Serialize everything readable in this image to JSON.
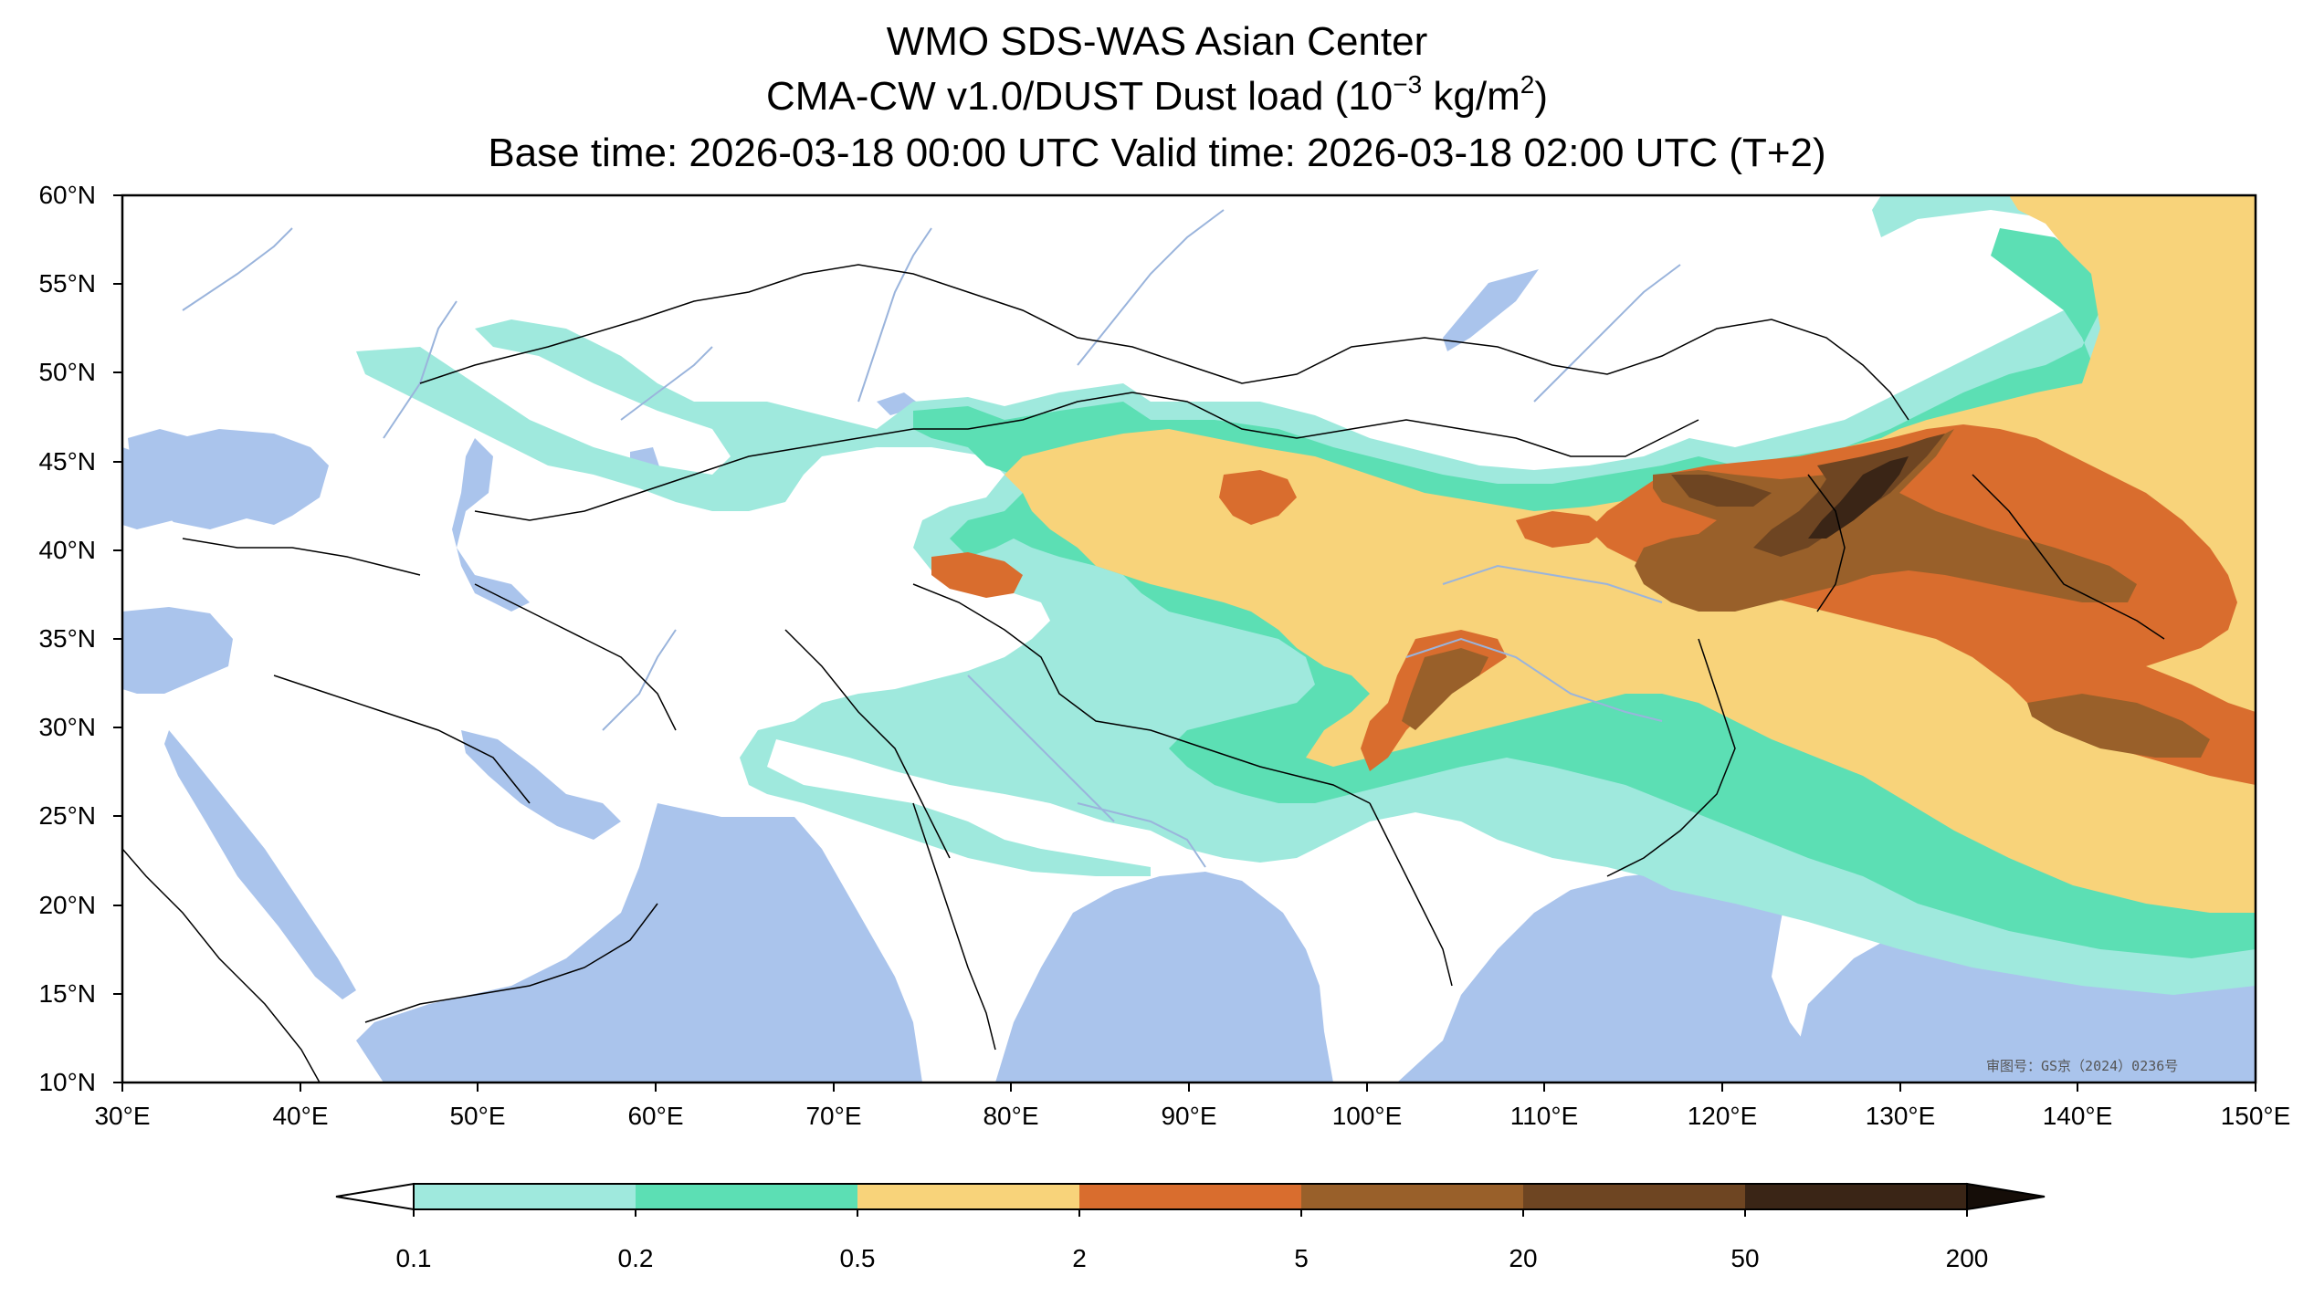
{
  "title": {
    "line1": "WMO SDS-WAS Asian Center",
    "line2_prefix": "CMA-CW v1.0/DUST Dust load (10",
    "line2_exp": "−3",
    "line2_mid": " kg/m",
    "line2_sup": "2",
    "line2_suffix": ")",
    "line3": "Base time: 2026-03-18 00:00 UTC Valid time: 2026-03-18 02:00 UTC (T+2)"
  },
  "map": {
    "projection": "Plate Carree",
    "lon_range": [
      30,
      150
    ],
    "lat_range": [
      10,
      60
    ],
    "y_ticks": [
      "60°N",
      "55°N",
      "50°N",
      "45°N",
      "40°N",
      "35°N",
      "30°N",
      "25°N",
      "20°N",
      "15°N",
      "10°N"
    ],
    "x_ticks": [
      "30°E",
      "40°E",
      "50°E",
      "60°E",
      "70°E",
      "80°E",
      "90°E",
      "100°E",
      "110°E",
      "120°E",
      "130°E",
      "140°E",
      "150°E"
    ],
    "approval_stamp": "审图号：GS京（2024）0236号",
    "colors": {
      "ocean": "#aac4ec",
      "land": "#ffffff",
      "border": "#000000",
      "river": "#9ab4dc"
    }
  },
  "colorbar": {
    "levels": [
      "0.1",
      "0.2",
      "0.5",
      "2",
      "5",
      "20",
      "50",
      "200"
    ],
    "colors": [
      "#9fe9dd",
      "#5cdfb4",
      "#f8d37a",
      "#d96d2e",
      "#99602a",
      "#6e4522",
      "#3a2516"
    ],
    "extend": "both"
  }
}
